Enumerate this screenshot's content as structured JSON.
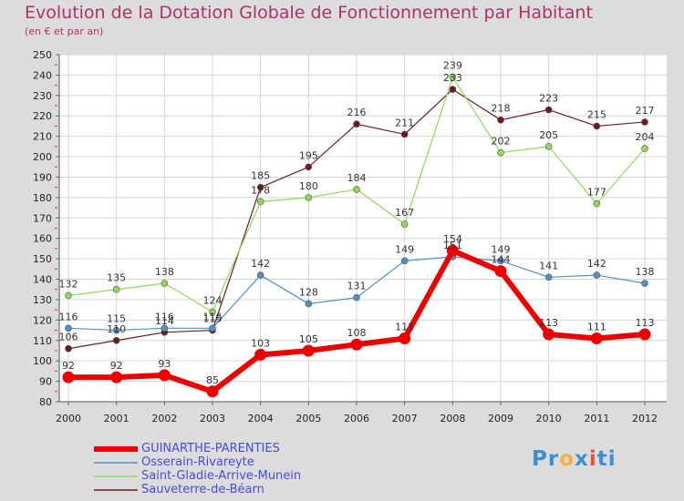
{
  "header": {
    "title": "Evolution de la Dotation Globale de Fonctionnement par Habitant",
    "subtitle": "(en € et par an)"
  },
  "brand": {
    "parts": [
      "Pr",
      "o",
      "x",
      "i",
      "ti"
    ]
  },
  "colors": {
    "background": "#dcdcdc",
    "plot_background": "#ffffff",
    "grid": "#d6d6d6",
    "title": "#b03068",
    "legend_text": "#4a4ad8",
    "logo": [
      "#3a8fd6",
      "#f2b33d",
      "#3a8fd6",
      "#e8533a",
      "#3a8fd6"
    ]
  },
  "chart_data": {
    "type": "line",
    "title": "Evolution de la Dotation Globale de Fonctionnement par Habitant",
    "subtitle": "(en € et par an)",
    "xlabel": "",
    "ylabel": "",
    "x": [
      "2000",
      "2001",
      "2002",
      "2003",
      "2004",
      "2005",
      "2006",
      "2007",
      "2008",
      "2009",
      "2010",
      "2011",
      "2012"
    ],
    "ylim": [
      80,
      250
    ],
    "yticks": [
      80,
      90,
      100,
      110,
      120,
      130,
      140,
      150,
      160,
      170,
      180,
      190,
      200,
      210,
      220,
      230,
      240,
      250
    ],
    "grid": true,
    "legend_position": "bottom-left",
    "series": [
      {
        "name": "Sauveterre-de-Béarn",
        "color": "#6b1a22",
        "width": 1.2,
        "marker": 3.5,
        "values": [
          106,
          110,
          114,
          115,
          185,
          195,
          216,
          211,
          233,
          218,
          223,
          215,
          217
        ],
        "labels": [
          "106",
          "110",
          "114",
          "115",
          "185",
          "195",
          "216",
          "211",
          "233",
          "218",
          "223",
          "215",
          "217"
        ]
      },
      {
        "name": "Saint-Gladie-Arrive-Munein",
        "color": "#8ed85a",
        "width": 1.2,
        "marker": 3.5,
        "values": [
          132,
          135,
          138,
          124,
          178,
          180,
          184,
          167,
          239,
          202,
          205,
          177,
          204
        ],
        "labels": [
          "132",
          "135",
          "138",
          "124",
          "178",
          "180",
          "184",
          "167",
          "239",
          "202",
          "205",
          "177",
          "204"
        ]
      },
      {
        "name": "Osserain-Rivareyte",
        "color": "#4e90c8",
        "width": 1.2,
        "marker": 3.5,
        "values": [
          116,
          115,
          116,
          116,
          142,
          128,
          131,
          149,
          151,
          149,
          141,
          142,
          138
        ],
        "labels": [
          "116",
          "115",
          "116",
          "116",
          "142",
          "128",
          "131",
          "149",
          "151",
          "149",
          "141",
          "142",
          "138"
        ]
      },
      {
        "name": "GUINARTHE-PARENTIES",
        "color": "#ee0000",
        "width": 6,
        "marker": 6.5,
        "values": [
          92,
          92,
          93,
          85,
          103,
          105,
          108,
          111,
          154,
          144,
          113,
          111,
          113
        ],
        "labels": [
          "92",
          "92",
          "93",
          "85",
          "103",
          "105",
          "108",
          "111",
          "154",
          "144",
          "113",
          "111",
          "113"
        ]
      }
    ],
    "legend_order": [
      "GUINARTHE-PARENTIES",
      "Osserain-Rivareyte",
      "Saint-Gladie-Arrive-Munein",
      "Sauveterre-de-Béarn"
    ]
  }
}
